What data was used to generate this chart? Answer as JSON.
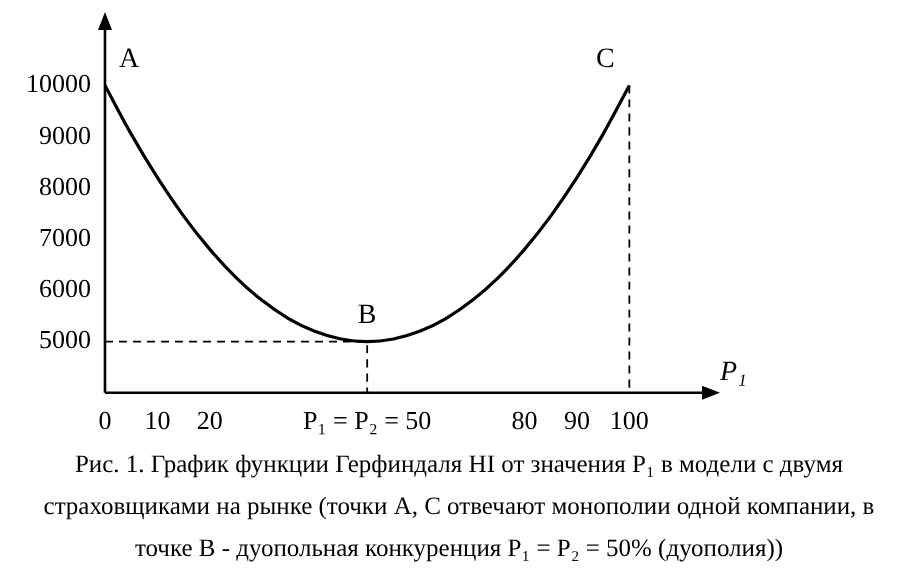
{
  "chart_data": {
    "type": "line",
    "xlabel": "P₁",
    "x": [
      0,
      5,
      10,
      15,
      20,
      25,
      30,
      35,
      40,
      45,
      50,
      55,
      60,
      65,
      70,
      75,
      80,
      85,
      90,
      95,
      100
    ],
    "series": [
      {
        "color": "#000000",
        "values": [
          10000,
          9050,
          8200,
          7450,
          6800,
          6250,
          5800,
          5450,
          5200,
          5050,
          5000,
          5050,
          5200,
          5450,
          5800,
          6250,
          6800,
          7450,
          8200,
          9050,
          10000
        ]
      },
      {
        "line_style": "dashed",
        "color": "#000000",
        "x": [
          0,
          50,
          50
        ],
        "values": [
          5000,
          5000,
          4000
        ]
      },
      {
        "line_style": "dashed",
        "color": "#000000",
        "x": [
          100,
          100
        ],
        "values": [
          10000,
          4000
        ]
      }
    ],
    "xlim": [
      0,
      115
    ],
    "ylim": [
      4000,
      11200
    ],
    "xticks": [
      0,
      10,
      20,
      {
        "value": 50,
        "label": "P₁ = P₂ = 50"
      },
      80,
      90,
      100
    ],
    "yticks": [
      5000,
      6000,
      7000,
      8000,
      9000,
      10000
    ],
    "grid": false,
    "legend": false,
    "marker": "none",
    "annotations": [
      {
        "text": "A",
        "x": 0,
        "y": 10000
      },
      {
        "text": "B",
        "x": 50,
        "y": 5000
      },
      {
        "text": "C",
        "x": 100,
        "y": 10000
      },
      "Рис. 1. График функции Герфиндаля HI от значения P₁ в модели с двумя страховщиками на рынке (точки A, C отвечают монополии одной компании, в точке B - дуопольная конкуренция P₁ = P₂ = 50% (дуополия))"
    ]
  }
}
